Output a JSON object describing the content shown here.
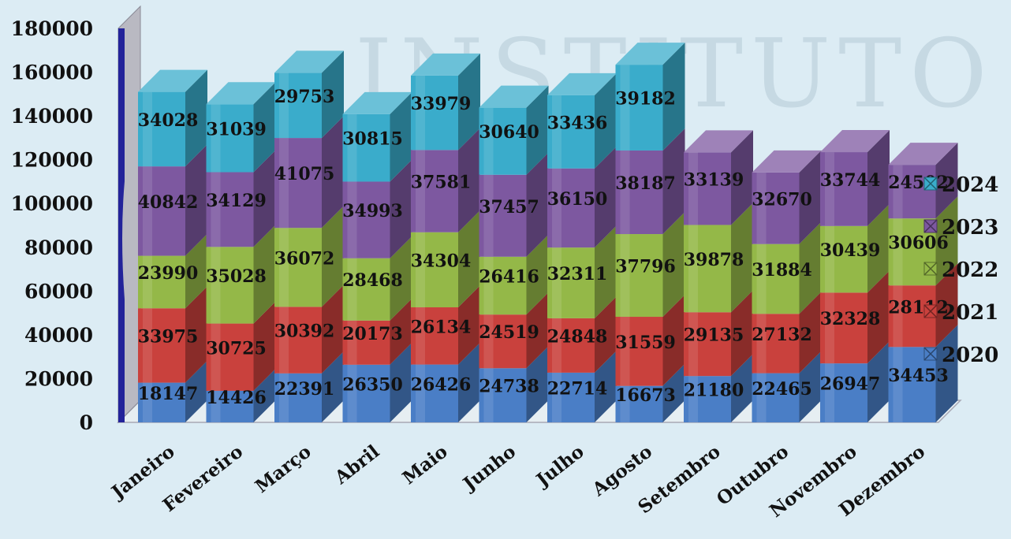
{
  "chart_data": {
    "type": "bar",
    "stacked": true,
    "three_d": true,
    "title": "",
    "xlabel": "",
    "ylabel": "",
    "ylim": [
      0,
      180000
    ],
    "yticks": [
      0,
      20000,
      40000,
      60000,
      80000,
      100000,
      120000,
      140000,
      160000,
      180000
    ],
    "grid": false,
    "legend_position": "right",
    "categories": [
      "Janeiro",
      "Fevereiro",
      "Março",
      "Abril",
      "Maio",
      "Junho",
      "Julho",
      "Agosto",
      "Setembro",
      "Outubro",
      "Novembro",
      "Dezembro"
    ],
    "series": [
      {
        "name": "2020",
        "color": "#4a7ec6",
        "values": [
          18147,
          14426,
          22391,
          26350,
          26426,
          24738,
          22714,
          16673,
          21180,
          22465,
          26947,
          34453
        ]
      },
      {
        "name": "2021",
        "color": "#c9413d",
        "values": [
          33975,
          30725,
          30392,
          20173,
          26134,
          24519,
          24848,
          31559,
          29135,
          27132,
          32328,
          28112
        ]
      },
      {
        "name": "2022",
        "color": "#94b848",
        "values": [
          23990,
          35028,
          36072,
          28468,
          34304,
          26416,
          32311,
          37796,
          39878,
          31884,
          30439,
          30606
        ]
      },
      {
        "name": "2023",
        "color": "#7d58a0",
        "values": [
          40842,
          34129,
          41075,
          34993,
          37581,
          37457,
          36150,
          38187,
          33139,
          32670,
          33744,
          24502
        ]
      },
      {
        "name": "2024",
        "color": "#3aaccb",
        "values": [
          34028,
          31039,
          29753,
          30815,
          33979,
          30640,
          33436,
          39182,
          null,
          null,
          null,
          null
        ]
      }
    ]
  },
  "watermark": {
    "text": "INSTITUTO"
  }
}
